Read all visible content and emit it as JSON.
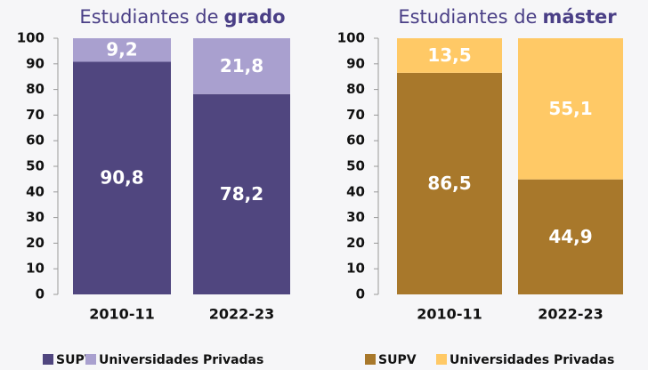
{
  "chart_data": [
    {
      "type": "stacked_bar",
      "title": "Estudiantes de",
      "title_bold": "grado",
      "categories": [
        "2010-11",
        "2022-23"
      ],
      "series": [
        {
          "name": "SUPV",
          "color": "#50467f",
          "values": [
            90.8,
            78.2
          ],
          "value_labels": [
            "90,8",
            "78,2"
          ]
        },
        {
          "name": "Universidades Privadas",
          "color": "#a9a0cf",
          "values": [
            9.2,
            21.8
          ],
          "value_labels": [
            "9,2",
            "21,8"
          ]
        }
      ],
      "ylim": [
        0,
        100
      ],
      "yticks": [
        0,
        10,
        20,
        30,
        40,
        50,
        60,
        70,
        80,
        90,
        100
      ]
    },
    {
      "type": "stacked_bar",
      "title": "Estudiantes de",
      "title_bold": "máster",
      "categories": [
        "2010-11",
        "2022-23"
      ],
      "series": [
        {
          "name": "SUPV",
          "color": "#a8782b",
          "values": [
            86.5,
            44.9
          ],
          "value_labels": [
            "86,5",
            "44,9"
          ]
        },
        {
          "name": "Universidades Privadas",
          "color": "#ffc966",
          "values": [
            13.5,
            55.1
          ],
          "value_labels": [
            "13,5",
            "55,1"
          ]
        }
      ],
      "ylim": [
        0,
        100
      ],
      "yticks": [
        0,
        10,
        20,
        30,
        40,
        50,
        60,
        70,
        80,
        90,
        100
      ]
    }
  ]
}
